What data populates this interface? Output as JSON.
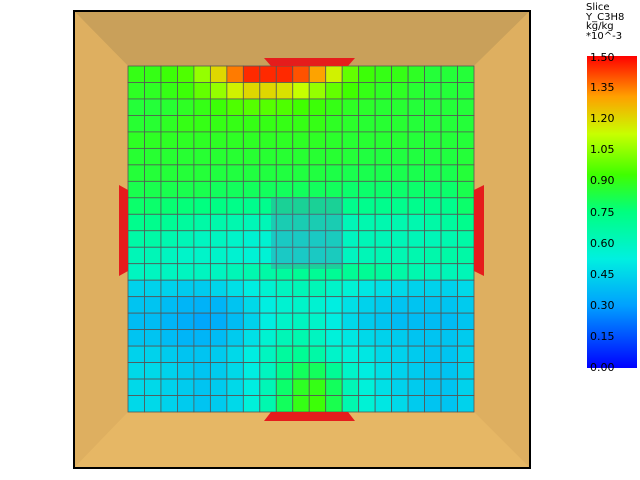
{
  "legend": {
    "header_lines": [
      "Slice",
      "Y_C3H8",
      "kg/kg",
      "*10^-3"
    ],
    "ticks": [
      "1.50",
      "1.35",
      "1.20",
      "1.05",
      "0.90",
      "0.75",
      "0.60",
      "0.45",
      "0.30",
      "0.15",
      "0.00"
    ],
    "min": 0.0,
    "max": 1.5
  },
  "colors": {
    "room_floor": "#e6b765",
    "room_top_wall": "#c9a05a",
    "room_side_wall": "#dcae5f",
    "vent": "#e51c1c",
    "grid_lines": "#555555",
    "outline": "#000000"
  },
  "field_description_levels": {
    "rows_top_to_bottom": [
      [
        0.9,
        0.9,
        0.92,
        0.95,
        1.05,
        1.2,
        1.35,
        1.45,
        1.45,
        1.45,
        1.4,
        1.3,
        1.15,
        0.98,
        0.92,
        0.9,
        0.9,
        0.88,
        0.85,
        0.85,
        0.85
      ],
      [
        0.88,
        0.88,
        0.9,
        0.92,
        0.98,
        1.05,
        1.15,
        1.2,
        1.2,
        1.18,
        1.12,
        1.05,
        0.98,
        0.93,
        0.9,
        0.88,
        0.88,
        0.86,
        0.85,
        0.85,
        0.85
      ],
      [
        0.85,
        0.85,
        0.86,
        0.88,
        0.9,
        0.92,
        0.95,
        0.96,
        0.96,
        0.95,
        0.93,
        0.92,
        0.9,
        0.88,
        0.87,
        0.86,
        0.86,
        0.85,
        0.85,
        0.85,
        0.85
      ],
      [
        0.86,
        0.86,
        0.88,
        0.9,
        0.9,
        0.9,
        0.9,
        0.9,
        0.9,
        0.9,
        0.9,
        0.9,
        0.88,
        0.87,
        0.86,
        0.86,
        0.86,
        0.85,
        0.85,
        0.85,
        0.85
      ],
      [
        0.88,
        0.88,
        0.88,
        0.88,
        0.88,
        0.88,
        0.88,
        0.88,
        0.88,
        0.88,
        0.88,
        0.88,
        0.87,
        0.86,
        0.86,
        0.86,
        0.86,
        0.85,
        0.85,
        0.85,
        0.85
      ],
      [
        0.86,
        0.86,
        0.86,
        0.86,
        0.86,
        0.86,
        0.86,
        0.86,
        0.86,
        0.86,
        0.86,
        0.86,
        0.86,
        0.85,
        0.84,
        0.84,
        0.84,
        0.84,
        0.84,
        0.84,
        0.85
      ],
      [
        0.85,
        0.85,
        0.85,
        0.85,
        0.85,
        0.84,
        0.84,
        0.84,
        0.84,
        0.84,
        0.84,
        0.84,
        0.83,
        0.82,
        0.82,
        0.82,
        0.82,
        0.82,
        0.82,
        0.82,
        0.85
      ],
      [
        0.82,
        0.82,
        0.82,
        0.82,
        0.82,
        0.8,
        0.8,
        0.8,
        0.8,
        0.8,
        0.8,
        0.8,
        0.8,
        0.78,
        0.78,
        0.78,
        0.78,
        0.78,
        0.78,
        0.78,
        0.82
      ],
      [
        0.78,
        0.78,
        0.77,
        0.76,
        0.75,
        0.74,
        0.73,
        0.72,
        0.72,
        0.72,
        0.72,
        0.72,
        0.72,
        0.72,
        0.72,
        0.72,
        0.72,
        0.72,
        0.72,
        0.72,
        0.78
      ],
      [
        0.72,
        0.72,
        0.7,
        0.68,
        0.66,
        0.65,
        0.64,
        0.62,
        0.62,
        0.62,
        0.62,
        0.62,
        0.62,
        0.62,
        0.64,
        0.64,
        0.64,
        0.64,
        0.66,
        0.68,
        0.72
      ],
      [
        0.66,
        0.66,
        0.64,
        0.62,
        0.6,
        0.6,
        0.58,
        0.56,
        0.56,
        0.56,
        0.56,
        0.56,
        0.58,
        0.6,
        0.62,
        0.62,
        0.62,
        0.62,
        0.62,
        0.64,
        0.66
      ],
      [
        0.62,
        0.62,
        0.6,
        0.58,
        0.58,
        0.58,
        0.56,
        0.55,
        0.55,
        0.55,
        0.55,
        0.56,
        0.58,
        0.6,
        0.62,
        0.63,
        0.63,
        0.64,
        0.65,
        0.66,
        0.66
      ],
      [
        0.6,
        0.6,
        0.6,
        0.6,
        0.6,
        0.6,
        0.62,
        0.64,
        0.66,
        0.68,
        0.7,
        0.7,
        0.7,
        0.7,
        0.7,
        0.68,
        0.66,
        0.64,
        0.62,
        0.62,
        0.62
      ],
      [
        0.44,
        0.44,
        0.44,
        0.42,
        0.42,
        0.45,
        0.48,
        0.52,
        0.56,
        0.6,
        0.62,
        0.62,
        0.58,
        0.55,
        0.5,
        0.48,
        0.46,
        0.44,
        0.44,
        0.44,
        0.46
      ],
      [
        0.4,
        0.4,
        0.38,
        0.36,
        0.35,
        0.36,
        0.4,
        0.46,
        0.52,
        0.56,
        0.58,
        0.56,
        0.52,
        0.48,
        0.44,
        0.42,
        0.4,
        0.4,
        0.4,
        0.4,
        0.42
      ],
      [
        0.38,
        0.38,
        0.36,
        0.34,
        0.32,
        0.34,
        0.38,
        0.44,
        0.52,
        0.58,
        0.6,
        0.58,
        0.52,
        0.46,
        0.42,
        0.4,
        0.38,
        0.38,
        0.38,
        0.38,
        0.4
      ],
      [
        0.4,
        0.4,
        0.38,
        0.36,
        0.36,
        0.38,
        0.42,
        0.48,
        0.56,
        0.62,
        0.64,
        0.6,
        0.54,
        0.5,
        0.46,
        0.44,
        0.42,
        0.4,
        0.4,
        0.4,
        0.42
      ],
      [
        0.44,
        0.44,
        0.42,
        0.4,
        0.4,
        0.42,
        0.46,
        0.52,
        0.6,
        0.68,
        0.7,
        0.66,
        0.58,
        0.54,
        0.5,
        0.46,
        0.44,
        0.42,
        0.4,
        0.4,
        0.44
      ],
      [
        0.46,
        0.46,
        0.44,
        0.42,
        0.4,
        0.42,
        0.46,
        0.52,
        0.6,
        0.72,
        0.8,
        0.8,
        0.7,
        0.58,
        0.52,
        0.48,
        0.44,
        0.42,
        0.4,
        0.4,
        0.44
      ],
      [
        0.46,
        0.46,
        0.44,
        0.42,
        0.4,
        0.42,
        0.46,
        0.52,
        0.62,
        0.78,
        0.88,
        0.9,
        0.8,
        0.62,
        0.54,
        0.48,
        0.44,
        0.42,
        0.4,
        0.4,
        0.44
      ],
      [
        0.46,
        0.46,
        0.44,
        0.42,
        0.4,
        0.42,
        0.46,
        0.54,
        0.64,
        0.8,
        0.9,
        0.92,
        0.82,
        0.64,
        0.55,
        0.5,
        0.46,
        0.42,
        0.4,
        0.4,
        0.44
      ]
    ]
  }
}
